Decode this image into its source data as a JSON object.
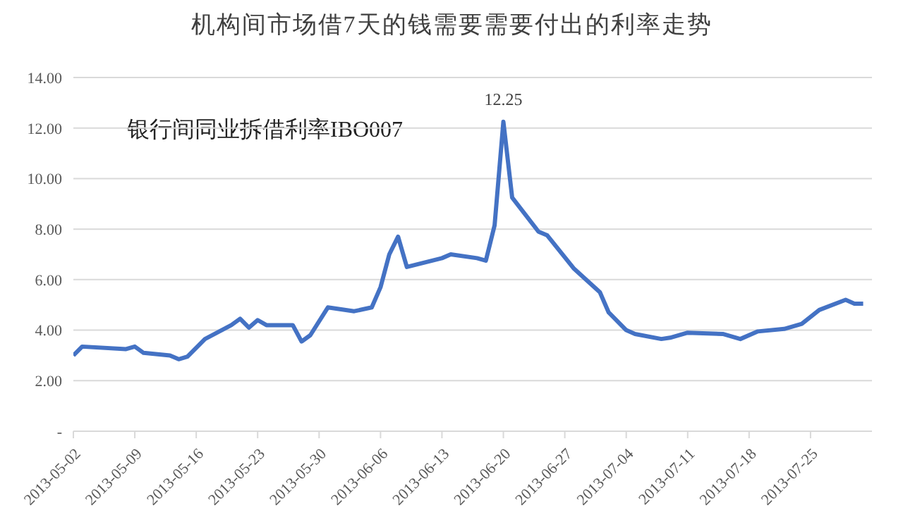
{
  "chart_data": {
    "type": "line",
    "title": "机构间市场借7天的钱需要需要付出的利率走势",
    "x": [
      "2013-05-02",
      "2013-05-03",
      "2013-05-08",
      "2013-05-09",
      "2013-05-10",
      "2013-05-13",
      "2013-05-14",
      "2013-05-15",
      "2013-05-17",
      "2013-05-20",
      "2013-05-21",
      "2013-05-22",
      "2013-05-23",
      "2013-05-24",
      "2013-05-27",
      "2013-05-28",
      "2013-05-29",
      "2013-05-31",
      "2013-06-03",
      "2013-06-05",
      "2013-06-06",
      "2013-06-07",
      "2013-06-08",
      "2013-06-09",
      "2013-06-13",
      "2013-06-14",
      "2013-06-17",
      "2013-06-18",
      "2013-06-19",
      "2013-06-20",
      "2013-06-21",
      "2013-06-24",
      "2013-06-25",
      "2013-06-28",
      "2013-07-01",
      "2013-07-02",
      "2013-07-04",
      "2013-07-05",
      "2013-07-08",
      "2013-07-09",
      "2013-07-11",
      "2013-07-15",
      "2013-07-17",
      "2013-07-19",
      "2013-07-22",
      "2013-07-24",
      "2013-07-26",
      "2013-07-29",
      "2013-07-30",
      "2013-07-31"
    ],
    "series": [
      {
        "color": "#4472c4",
        "values": [
          3.0,
          3.35,
          3.25,
          3.35,
          3.1,
          3.0,
          2.85,
          2.95,
          3.65,
          4.2,
          4.45,
          4.1,
          4.4,
          4.2,
          4.2,
          3.55,
          3.8,
          4.9,
          4.75,
          4.9,
          5.7,
          7.0,
          7.7,
          6.5,
          6.85,
          7.0,
          6.85,
          6.75,
          8.15,
          12.25,
          9.25,
          7.9,
          7.75,
          6.45,
          5.5,
          4.7,
          4.0,
          3.85,
          3.65,
          3.7,
          3.9,
          3.85,
          3.65,
          3.95,
          4.05,
          4.25,
          4.8,
          5.2,
          5.05,
          5.05
        ]
      }
    ],
    "xlim": [
      "2013-05-02",
      "2013-08-01"
    ],
    "xticks": [
      "2013-05-02",
      "2013-05-09",
      "2013-05-16",
      "2013-05-23",
      "2013-05-30",
      "2013-06-06",
      "2013-06-13",
      "2013-06-20",
      "2013-06-27",
      "2013-07-04",
      "2013-07-11",
      "2013-07-18",
      "2013-07-25"
    ],
    "ylim": [
      0,
      14
    ],
    "yticks": [
      {
        "value": 0,
        "label": "-"
      },
      {
        "value": 2,
        "label": "2.00"
      },
      {
        "value": 4,
        "label": "4.00"
      },
      {
        "value": 6,
        "label": "6.00"
      },
      {
        "value": 8,
        "label": "8.00"
      },
      {
        "value": 10,
        "label": "10.00"
      },
      {
        "value": 12,
        "label": "12.00"
      },
      {
        "value": 14,
        "label": "14.00"
      }
    ],
    "grid": "y",
    "legend": false,
    "marker": "none",
    "line_style": "solid",
    "annotations": [
      {
        "text": "12.25",
        "x": "2013-06-20",
        "y": 12.25
      },
      "银行间同业拆借利率IBO007"
    ]
  }
}
